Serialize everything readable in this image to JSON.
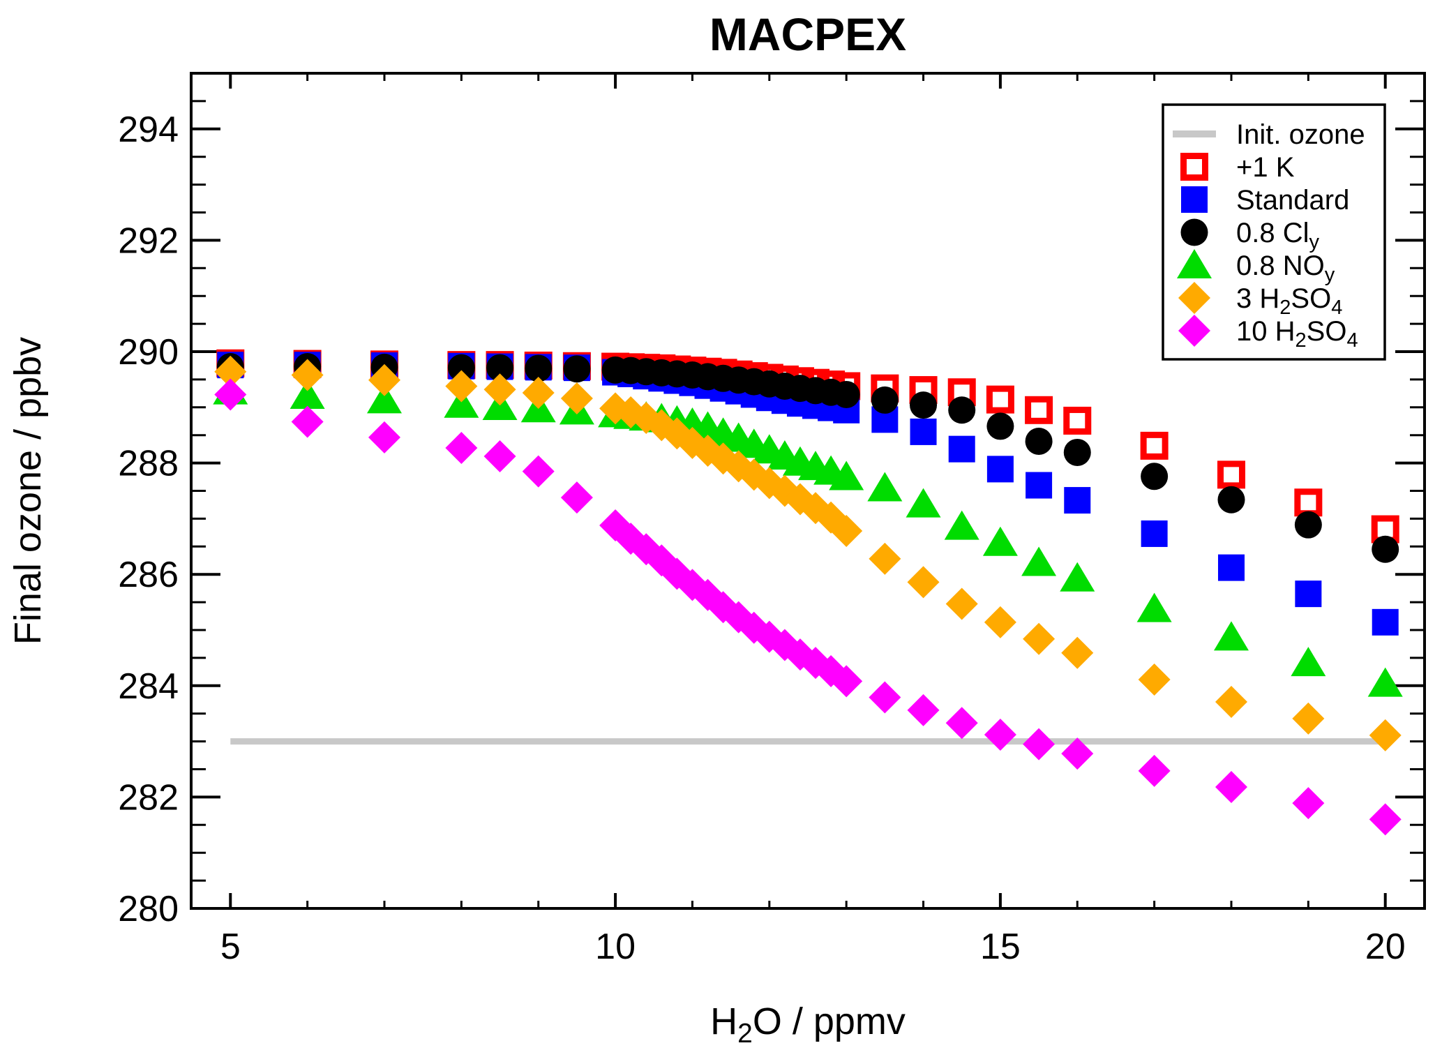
{
  "title": "MACPEX",
  "axes": {
    "x": {
      "label_segments": [
        {
          "t": "H"
        },
        {
          "t": "2",
          "sub": true
        },
        {
          "t": "O / ppmv"
        }
      ],
      "min": 4.49,
      "max": 20.51,
      "major_ticks": [
        5,
        10,
        15,
        20
      ],
      "minor_step": 1
    },
    "y": {
      "label": "Final ozone / ppbv",
      "min": 280,
      "max": 295,
      "major_ticks": [
        280,
        282,
        284,
        286,
        288,
        290,
        292,
        294
      ],
      "minor_step": 0.5
    }
  },
  "colors": {
    "plus1k": "#FF0000",
    "standard": "#0000FF",
    "cly": "#000000",
    "noy": "#00DC00",
    "h2so4_3": "#FFAA00",
    "h2so4_10": "#FF00FF",
    "init_ozone": "#C8C8C8",
    "axis": "#000000",
    "background": "#FFFFFF"
  },
  "legend": {
    "entries": [
      {
        "key": "init-ozone",
        "marker": "line",
        "color": "#C8C8C8",
        "segments": [
          {
            "t": "Init. ozone"
          }
        ]
      },
      {
        "key": "plus-1-k",
        "marker": "open-square",
        "color": "#FF0000",
        "segments": [
          {
            "t": "+1 K"
          }
        ]
      },
      {
        "key": "standard",
        "marker": "square",
        "color": "#0000FF",
        "segments": [
          {
            "t": "Standard"
          }
        ]
      },
      {
        "key": "cl-y",
        "marker": "circle",
        "color": "#000000",
        "segments": [
          {
            "t": "0.8 Cl"
          },
          {
            "t": "y",
            "sub": true
          }
        ]
      },
      {
        "key": "no-y",
        "marker": "triangle",
        "color": "#00DC00",
        "segments": [
          {
            "t": "0.8 NO"
          },
          {
            "t": "y",
            "sub": true
          }
        ]
      },
      {
        "key": "h2so4-3",
        "marker": "diamond",
        "color": "#FFAA00",
        "segments": [
          {
            "t": "3 H"
          },
          {
            "t": "2",
            "sub": true
          },
          {
            "t": "SO"
          },
          {
            "t": "4",
            "sub": true
          }
        ]
      },
      {
        "key": "h2so4-10",
        "marker": "diamond",
        "color": "#FF00FF",
        "segments": [
          {
            "t": "10 H"
          },
          {
            "t": "2",
            "sub": true
          },
          {
            "t": "SO"
          },
          {
            "t": "4",
            "sub": true
          }
        ]
      }
    ]
  },
  "chart_data": {
    "type": "scatter",
    "title": "MACPEX",
    "xlabel": "H2O / ppmv",
    "ylabel": "Final ozone / ppbv",
    "xlim": [
      4.49,
      20.51
    ],
    "ylim": [
      280,
      295
    ],
    "grid": false,
    "legend_position": "upper right",
    "x": [
      5,
      6,
      7,
      8,
      8.5,
      9,
      9.5,
      10,
      10.2,
      10.4,
      10.6,
      10.8,
      11,
      11.2,
      11.4,
      11.6,
      11.8,
      12,
      12.2,
      12.4,
      12.6,
      12.8,
      13,
      13.5,
      14,
      14.5,
      15,
      15.5,
      16,
      17,
      18,
      19,
      20
    ],
    "series": [
      {
        "name": "+1 K",
        "legend_key": "plus-1-k",
        "marker": "open-square",
        "color": "#FF0000",
        "values": [
          289.79,
          289.78,
          289.77,
          289.76,
          289.76,
          289.75,
          289.74,
          289.73,
          289.72,
          289.71,
          289.7,
          289.68,
          289.66,
          289.64,
          289.62,
          289.59,
          289.56,
          289.53,
          289.5,
          289.47,
          289.44,
          289.41,
          289.38,
          289.34,
          289.31,
          289.27,
          289.14,
          288.95,
          288.76,
          288.31,
          287.79,
          287.29,
          286.81
        ]
      },
      {
        "name": "Standard",
        "legend_key": "standard",
        "marker": "square",
        "color": "#0000FF",
        "values": [
          289.76,
          289.76,
          289.75,
          289.74,
          289.73,
          289.72,
          289.71,
          289.63,
          289.6,
          289.56,
          289.52,
          289.48,
          289.44,
          289.39,
          289.34,
          289.29,
          289.23,
          289.17,
          289.12,
          289.07,
          289.03,
          288.99,
          288.95,
          288.78,
          288.56,
          288.25,
          287.89,
          287.6,
          287.33,
          286.73,
          286.12,
          285.65,
          285.14
        ]
      },
      {
        "name": "0.8 Cly",
        "legend_key": "cl-y",
        "marker": "circle",
        "color": "#000000",
        "values": [
          289.73,
          289.73,
          289.72,
          289.71,
          289.71,
          289.7,
          289.69,
          289.67,
          289.66,
          289.64,
          289.62,
          289.6,
          289.58,
          289.55,
          289.52,
          289.49,
          289.46,
          289.42,
          289.38,
          289.34,
          289.3,
          289.27,
          289.23,
          289.13,
          289.04,
          288.95,
          288.66,
          288.39,
          288.19,
          287.76,
          287.34,
          286.89,
          286.45
        ]
      },
      {
        "name": "0.8 NOy",
        "legend_key": "no-y",
        "marker": "triangle",
        "color": "#00DC00",
        "values": [
          289.29,
          289.21,
          289.13,
          289.05,
          289.01,
          288.97,
          288.93,
          288.88,
          288.85,
          288.82,
          288.79,
          288.75,
          288.71,
          288.64,
          288.53,
          288.44,
          288.33,
          288.23,
          288.12,
          288.01,
          287.93,
          287.85,
          287.75,
          287.55,
          287.26,
          286.86,
          286.57,
          286.21,
          285.93,
          285.38,
          284.87,
          284.41,
          284.04
        ]
      },
      {
        "name": "3 H2SO4",
        "legend_key": "h2so4-3",
        "marker": "diamond",
        "color": "#FFAA00",
        "values": [
          289.64,
          289.58,
          289.49,
          289.38,
          289.32,
          289.26,
          289.16,
          288.98,
          288.91,
          288.81,
          288.68,
          288.53,
          288.36,
          288.22,
          288.08,
          287.94,
          287.79,
          287.64,
          287.5,
          287.35,
          287.19,
          287.02,
          286.78,
          286.28,
          285.86,
          285.47,
          285.14,
          284.84,
          284.59,
          284.11,
          283.71,
          283.41,
          283.11
        ]
      },
      {
        "name": "10 H2SO4",
        "legend_key": "h2so4-10",
        "marker": "diamond",
        "color": "#FF00FF",
        "values": [
          289.23,
          288.74,
          288.46,
          288.27,
          288.12,
          287.85,
          287.38,
          286.88,
          286.64,
          286.45,
          286.25,
          286.01,
          285.81,
          285.63,
          285.41,
          285.23,
          285.04,
          284.88,
          284.73,
          284.56,
          284.41,
          284.26,
          284.08,
          283.79,
          283.56,
          283.33,
          283.12,
          282.95,
          282.78,
          282.47,
          282.18,
          281.89,
          281.6
        ]
      }
    ],
    "reference_line": {
      "name": "Init. ozone",
      "value": 283,
      "x_start": 5,
      "x_end": 20,
      "color": "#C8C8C8"
    }
  }
}
